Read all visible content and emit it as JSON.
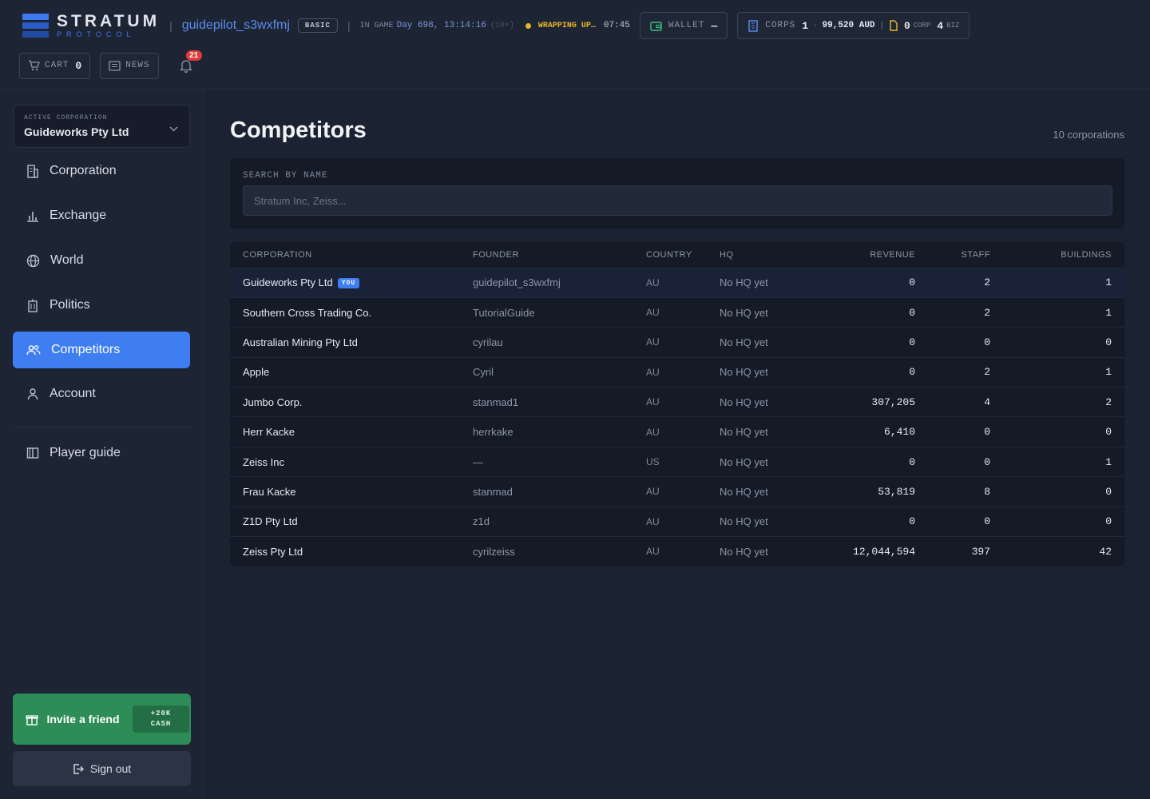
{
  "header": {
    "logo_name": "STRATUM",
    "logo_sub": "PROTOCOL",
    "username": "guidepilot_s3wxfmj",
    "plan": "BASIC",
    "in_game_label": "IN GAME",
    "game_day": "Day 698, 13:14:16",
    "speed": "(10×)",
    "status_text": "WRAPPING UP…",
    "status_time": "07:45",
    "wallet_label": "WALLET",
    "wallet_value": "—",
    "corps_label": "CORPS",
    "corps_count": "1",
    "balance": "99,520 AUD",
    "corp_count2": "0",
    "corp_label": "CORP",
    "biz_count": "4",
    "biz_label": "BIZ",
    "cart_label": "CART",
    "cart_count": "0",
    "news_label": "NEWS",
    "notification_count": "21"
  },
  "sidebar": {
    "active_corp_caption": "ACTIVE CORPORATION",
    "active_corp_name": "Guideworks Pty Ltd",
    "items": [
      {
        "label": "Corporation",
        "icon": "building-icon"
      },
      {
        "label": "Exchange",
        "icon": "bar-chart-icon"
      },
      {
        "label": "World",
        "icon": "globe-icon"
      },
      {
        "label": "Politics",
        "icon": "government-icon"
      },
      {
        "label": "Competitors",
        "icon": "users-icon"
      },
      {
        "label": "Account",
        "icon": "user-icon"
      },
      {
        "label": "Player guide",
        "icon": "book-icon"
      }
    ],
    "invite_label": "Invite a friend",
    "invite_bonus_1": "+20K",
    "invite_bonus_2": "CASH",
    "signout_label": "Sign out"
  },
  "main": {
    "title": "Competitors",
    "count": "10 corporations",
    "search_caption": "SEARCH BY NAME",
    "search_placeholder": "Stratum Inc, Zeiss...",
    "columns": [
      "CORPORATION",
      "FOUNDER",
      "COUNTRY",
      "HQ",
      "REVENUE",
      "STAFF",
      "BUILDINGS"
    ],
    "you_badge": "YOU",
    "rows": [
      {
        "corporation": "Guideworks Pty Ltd",
        "founder": "guidepilot_s3wxfmj",
        "country": "AU",
        "hq": "No HQ yet",
        "revenue": "0",
        "staff": "2",
        "buildings": "1"
      },
      {
        "corporation": "Southern Cross Trading Co.",
        "founder": "TutorialGuide",
        "country": "AU",
        "hq": "No HQ yet",
        "revenue": "0",
        "staff": "2",
        "buildings": "1"
      },
      {
        "corporation": "Australian Mining Pty Ltd",
        "founder": "cyrilau",
        "country": "AU",
        "hq": "No HQ yet",
        "revenue": "0",
        "staff": "0",
        "buildings": "0"
      },
      {
        "corporation": "Apple",
        "founder": "Cyril",
        "country": "AU",
        "hq": "No HQ yet",
        "revenue": "0",
        "staff": "2",
        "buildings": "1"
      },
      {
        "corporation": "Jumbo Corp.",
        "founder": "stanmad1",
        "country": "AU",
        "hq": "No HQ yet",
        "revenue": "307,205",
        "staff": "4",
        "buildings": "2"
      },
      {
        "corporation": "Herr Kacke",
        "founder": "herrkake",
        "country": "AU",
        "hq": "No HQ yet",
        "revenue": "6,410",
        "staff": "0",
        "buildings": "0"
      },
      {
        "corporation": "Zeiss Inc",
        "founder": "—",
        "country": "US",
        "hq": "No HQ yet",
        "revenue": "0",
        "staff": "0",
        "buildings": "1"
      },
      {
        "corporation": "Frau Kacke",
        "founder": "stanmad",
        "country": "AU",
        "hq": "No HQ yet",
        "revenue": "53,819",
        "staff": "8",
        "buildings": "0"
      },
      {
        "corporation": "Z1D Pty Ltd",
        "founder": "z1d",
        "country": "AU",
        "hq": "No HQ yet",
        "revenue": "0",
        "staff": "0",
        "buildings": "0"
      },
      {
        "corporation": "Zeiss Pty Ltd",
        "founder": "cyrilzeiss",
        "country": "AU",
        "hq": "No HQ yet",
        "revenue": "12,044,594",
        "staff": "397",
        "buildings": "42"
      }
    ]
  },
  "colors": {
    "accent": "#3f7ef0",
    "invite_green": "#2e8d57",
    "warning": "#e7b728",
    "badge_red": "#e23b3b"
  }
}
